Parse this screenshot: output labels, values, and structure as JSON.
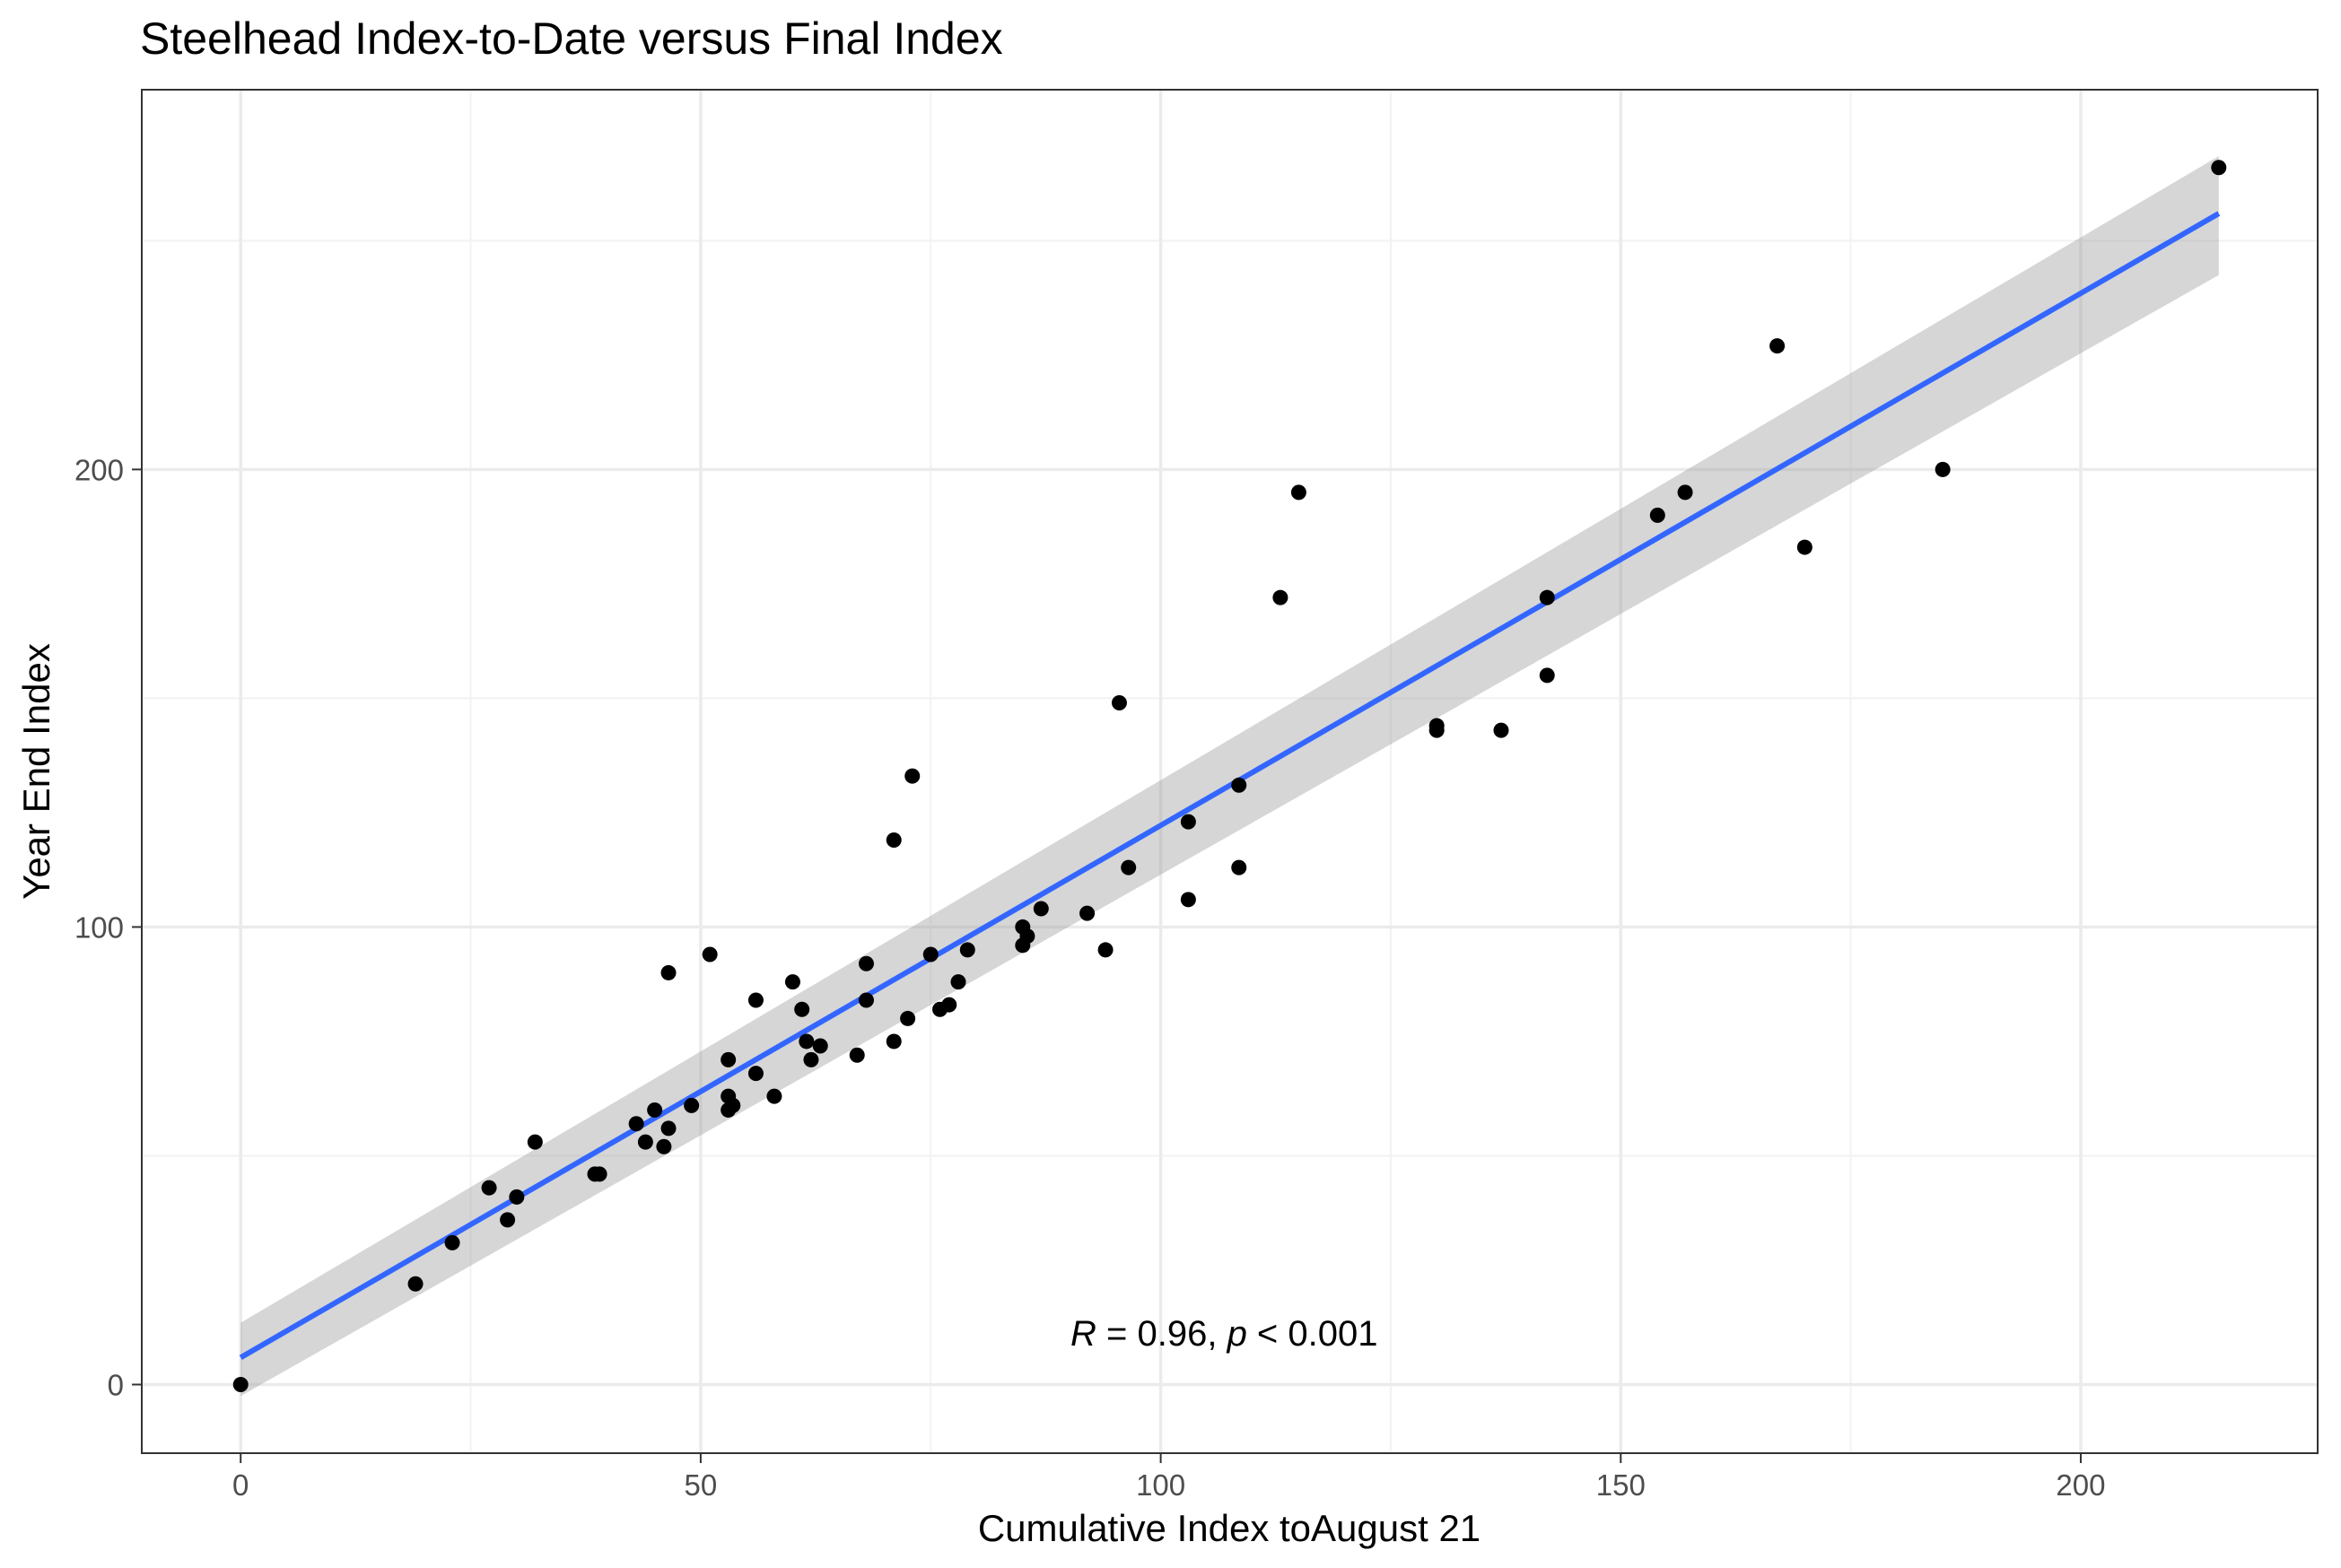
{
  "chart_data": {
    "type": "scatter",
    "title": "Steelhead Index-to-Date versus Final Index",
    "xlabel": "Cumulative Index toAugust 21",
    "ylabel": "Year End Index",
    "xlim": [
      -10.75,
      225.75
    ],
    "ylim": [
      -15,
      283
    ],
    "x_ticks": [
      0,
      50,
      100,
      150,
      200
    ],
    "y_ticks": [
      0,
      100,
      200
    ],
    "grid": true,
    "annotation": {
      "r_label": "R",
      "r_value": " = 0.96, ",
      "p_label": "p",
      "p_value": " < 0.001",
      "x": 90,
      "y": 10
    },
    "regression": {
      "intercept": 5.9,
      "slope": 1.163,
      "x_range": [
        0,
        215
      ],
      "ci_low": [
        -2.5,
        242.5
      ],
      "ci_high": [
        13.5,
        268.5
      ]
    },
    "colors": {
      "points": "#000000",
      "line": "#3366ff",
      "band": "#999999"
    },
    "points": [
      {
        "x": 0,
        "y": 0
      },
      {
        "x": 19,
        "y": 22
      },
      {
        "x": 23,
        "y": 31
      },
      {
        "x": 27,
        "y": 43
      },
      {
        "x": 29,
        "y": 36
      },
      {
        "x": 30,
        "y": 41
      },
      {
        "x": 32,
        "y": 53
      },
      {
        "x": 38.5,
        "y": 46
      },
      {
        "x": 39,
        "y": 46
      },
      {
        "x": 43,
        "y": 57
      },
      {
        "x": 44,
        "y": 53
      },
      {
        "x": 45,
        "y": 60
      },
      {
        "x": 46,
        "y": 52
      },
      {
        "x": 46.5,
        "y": 56
      },
      {
        "x": 46.5,
        "y": 90
      },
      {
        "x": 49,
        "y": 61
      },
      {
        "x": 51,
        "y": 94
      },
      {
        "x": 53,
        "y": 71
      },
      {
        "x": 53,
        "y": 63
      },
      {
        "x": 53,
        "y": 60
      },
      {
        "x": 53.5,
        "y": 61
      },
      {
        "x": 56,
        "y": 84
      },
      {
        "x": 56,
        "y": 68
      },
      {
        "x": 58,
        "y": 63
      },
      {
        "x": 60,
        "y": 88
      },
      {
        "x": 61,
        "y": 82
      },
      {
        "x": 61.5,
        "y": 75
      },
      {
        "x": 62,
        "y": 71
      },
      {
        "x": 63,
        "y": 74
      },
      {
        "x": 67,
        "y": 72
      },
      {
        "x": 68,
        "y": 92
      },
      {
        "x": 68,
        "y": 84
      },
      {
        "x": 71,
        "y": 75
      },
      {
        "x": 71,
        "y": 119
      },
      {
        "x": 72.5,
        "y": 80
      },
      {
        "x": 73,
        "y": 133
      },
      {
        "x": 75,
        "y": 94
      },
      {
        "x": 76,
        "y": 82
      },
      {
        "x": 77,
        "y": 83
      },
      {
        "x": 78,
        "y": 88
      },
      {
        "x": 79,
        "y": 95
      },
      {
        "x": 85,
        "y": 100
      },
      {
        "x": 85,
        "y": 96
      },
      {
        "x": 85.5,
        "y": 98
      },
      {
        "x": 87,
        "y": 104
      },
      {
        "x": 92,
        "y": 103
      },
      {
        "x": 94,
        "y": 95
      },
      {
        "x": 95.5,
        "y": 149
      },
      {
        "x": 96.5,
        "y": 113
      },
      {
        "x": 103,
        "y": 106
      },
      {
        "x": 103,
        "y": 123
      },
      {
        "x": 108.5,
        "y": 131
      },
      {
        "x": 108.5,
        "y": 113
      },
      {
        "x": 113,
        "y": 172
      },
      {
        "x": 115,
        "y": 195
      },
      {
        "x": 130,
        "y": 144
      },
      {
        "x": 130,
        "y": 143
      },
      {
        "x": 137,
        "y": 143
      },
      {
        "x": 142,
        "y": 172
      },
      {
        "x": 142,
        "y": 155
      },
      {
        "x": 154,
        "y": 190
      },
      {
        "x": 157,
        "y": 195
      },
      {
        "x": 167,
        "y": 227
      },
      {
        "x": 170,
        "y": 183
      },
      {
        "x": 185,
        "y": 200
      },
      {
        "x": 215,
        "y": 266
      }
    ]
  }
}
